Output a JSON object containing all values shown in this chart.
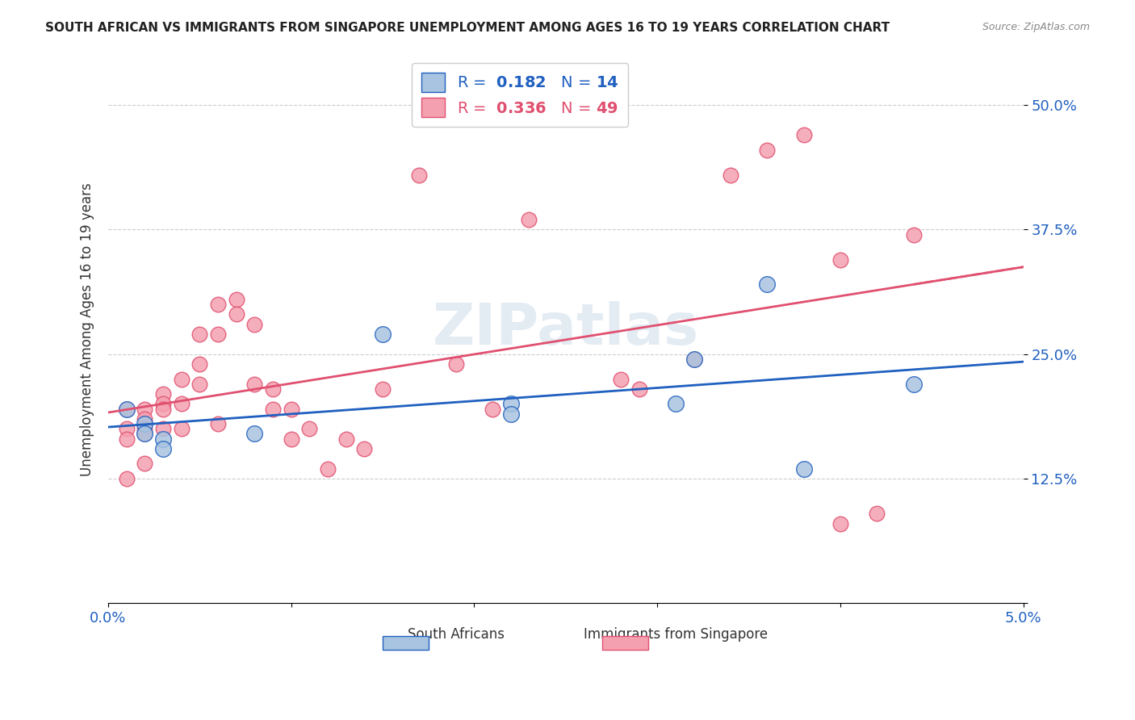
{
  "title": "SOUTH AFRICAN VS IMMIGRANTS FROM SINGAPORE UNEMPLOYMENT AMONG AGES 16 TO 19 YEARS CORRELATION CHART",
  "source": "Source: ZipAtlas.com",
  "xlabel_start": "0.0%",
  "xlabel_end": "5.0%",
  "ylabel": "Unemployment Among Ages 16 to 19 years",
  "yticks": [
    "",
    "12.5%",
    "25.0%",
    "37.5%",
    "50.0%"
  ],
  "ytick_vals": [
    0.0,
    0.125,
    0.25,
    0.375,
    0.5
  ],
  "xlim": [
    0.0,
    0.05
  ],
  "ylim": [
    0.0,
    0.55
  ],
  "blue_color": "#a8c4e0",
  "pink_color": "#f4a0b0",
  "blue_line_color": "#2060c0",
  "pink_line_color": "#e05070",
  "background_color": "#ffffff",
  "grid_color": "#cccccc",
  "watermark": "ZIPatlas",
  "south_africans_x": [
    0.001,
    0.002,
    0.002,
    0.003,
    0.003,
    0.008,
    0.015,
    0.022,
    0.022,
    0.032,
    0.031,
    0.036,
    0.038,
    0.044
  ],
  "south_africans_y": [
    0.195,
    0.18,
    0.17,
    0.165,
    0.155,
    0.17,
    0.27,
    0.2,
    0.19,
    0.245,
    0.2,
    0.32,
    0.135,
    0.22
  ],
  "immigrants_x": [
    0.001,
    0.001,
    0.001,
    0.001,
    0.002,
    0.002,
    0.002,
    0.002,
    0.002,
    0.003,
    0.003,
    0.003,
    0.003,
    0.004,
    0.004,
    0.004,
    0.005,
    0.005,
    0.005,
    0.006,
    0.006,
    0.006,
    0.007,
    0.007,
    0.008,
    0.008,
    0.009,
    0.009,
    0.01,
    0.01,
    0.011,
    0.012,
    0.013,
    0.014,
    0.015,
    0.017,
    0.019,
    0.021,
    0.023,
    0.028,
    0.029,
    0.032,
    0.034,
    0.036,
    0.038,
    0.04,
    0.04,
    0.042,
    0.044
  ],
  "immigrants_y": [
    0.195,
    0.175,
    0.165,
    0.125,
    0.195,
    0.185,
    0.175,
    0.17,
    0.14,
    0.21,
    0.2,
    0.195,
    0.175,
    0.225,
    0.2,
    0.175,
    0.27,
    0.24,
    0.22,
    0.3,
    0.27,
    0.18,
    0.305,
    0.29,
    0.28,
    0.22,
    0.215,
    0.195,
    0.195,
    0.165,
    0.175,
    0.135,
    0.165,
    0.155,
    0.215,
    0.43,
    0.24,
    0.195,
    0.385,
    0.225,
    0.215,
    0.245,
    0.43,
    0.455,
    0.47,
    0.345,
    0.08,
    0.09,
    0.37
  ]
}
